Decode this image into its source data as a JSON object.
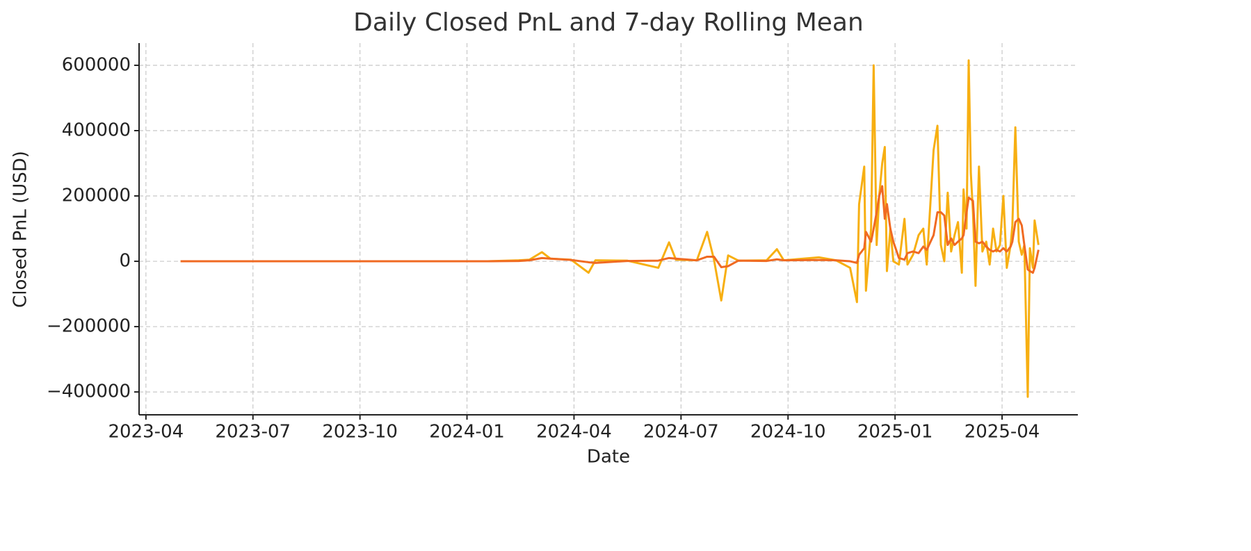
{
  "chart_data": {
    "type": "line",
    "title": "Daily Closed PnL and 7-day Rolling Mean",
    "xlabel": "Date",
    "ylabel": "Closed PnL (USD)",
    "grid": true,
    "xlim": [
      2023.234,
      2025.427
    ],
    "ylim": [
      -470000,
      668000
    ],
    "xticks": [
      {
        "value": 2023.25,
        "label": "2023-04"
      },
      {
        "value": 2023.5,
        "label": "2023-07"
      },
      {
        "value": 2023.75,
        "label": "2023-10"
      },
      {
        "value": 2024.0,
        "label": "2024-01"
      },
      {
        "value": 2024.25,
        "label": "2024-04"
      },
      {
        "value": 2024.5,
        "label": "2024-07"
      },
      {
        "value": 2024.75,
        "label": "2024-10"
      },
      {
        "value": 2025.0,
        "label": "2025-01"
      },
      {
        "value": 2025.25,
        "label": "2025-04"
      }
    ],
    "yticks": [
      {
        "value": -400000,
        "label": "−400000"
      },
      {
        "value": -200000,
        "label": "−200000"
      },
      0,
      200000,
      400000,
      600000
    ],
    "x": [
      2023.331,
      2023.559,
      2023.885,
      2024.048,
      2024.121,
      2024.146,
      2024.175,
      2024.195,
      2024.243,
      2024.284,
      2024.3,
      2024.374,
      2024.447,
      2024.472,
      2024.488,
      2024.537,
      2024.561,
      2024.577,
      2024.594,
      2024.61,
      2024.634,
      2024.7,
      2024.724,
      2024.74,
      2024.822,
      2024.862,
      2024.895,
      2024.911,
      2024.916,
      2024.928,
      2024.932,
      2024.944,
      2024.95,
      2024.957,
      2024.963,
      2024.97,
      2024.976,
      2024.981,
      2024.989,
      2024.996,
      2025.009,
      2025.022,
      2025.029,
      2025.042,
      2025.055,
      2025.066,
      2025.074,
      2025.09,
      2025.099,
      2025.107,
      2025.115,
      2025.123,
      2025.131,
      2025.139,
      2025.147,
      2025.156,
      2025.16,
      2025.167,
      2025.172,
      2025.177,
      2025.182,
      2025.188,
      2025.196,
      2025.204,
      2025.213,
      2025.221,
      2025.229,
      2025.237,
      2025.245,
      2025.253,
      2025.261,
      2025.27,
      2025.274,
      2025.281,
      2025.289,
      2025.296,
      2025.302,
      2025.31,
      2025.315,
      2025.322,
      2025.326,
      2025.335
    ],
    "series": [
      {
        "color": "#F7AF12",
        "values": [
          0,
          0,
          0,
          0,
          3000,
          5000,
          28000,
          8000,
          5000,
          -35000,
          3000,
          2000,
          -20000,
          58000,
          5000,
          3000,
          90000,
          5000,
          -120000,
          18000,
          2000,
          3000,
          37000,
          3000,
          12000,
          3000,
          -20000,
          -125000,
          175000,
          290000,
          -90000,
          100000,
          600000,
          50000,
          200000,
          300000,
          350000,
          -30000,
          100000,
          0,
          -10000,
          130000,
          -10000,
          20000,
          80000,
          100000,
          -10000,
          340000,
          415000,
          50000,
          0,
          210000,
          30000,
          80000,
          120000,
          -35000,
          220000,
          100000,
          615000,
          270000,
          150000,
          -75000,
          290000,
          30000,
          60000,
          -10000,
          100000,
          30000,
          50000,
          200000,
          -20000,
          50000,
          110000,
          410000,
          60000,
          20000,
          50000,
          -415000,
          40000,
          -20000,
          125000,
          50000
        ]
      },
      {
        "color": "#F06A22",
        "values": [
          0,
          0,
          0,
          0,
          1000,
          3000,
          10000,
          8000,
          4000,
          -3000,
          -5000,
          1000,
          2000,
          10000,
          8000,
          3000,
          14000,
          14000,
          -18000,
          -15000,
          2000,
          1000,
          6000,
          3000,
          4000,
          3000,
          0,
          -5000,
          20000,
          40000,
          90000,
          60000,
          100000,
          150000,
          200000,
          230000,
          130000,
          175000,
          100000,
          60000,
          10000,
          5000,
          25000,
          30000,
          25000,
          45000,
          35000,
          80000,
          150000,
          150000,
          140000,
          50000,
          70000,
          50000,
          60000,
          70000,
          80000,
          150000,
          195000,
          190000,
          185000,
          60000,
          55000,
          60000,
          45000,
          35000,
          30000,
          35000,
          30000,
          40000,
          30000,
          45000,
          60000,
          120000,
          130000,
          110000,
          50000,
          -25000,
          -30000,
          -35000,
          -20000,
          35000
        ]
      }
    ]
  }
}
